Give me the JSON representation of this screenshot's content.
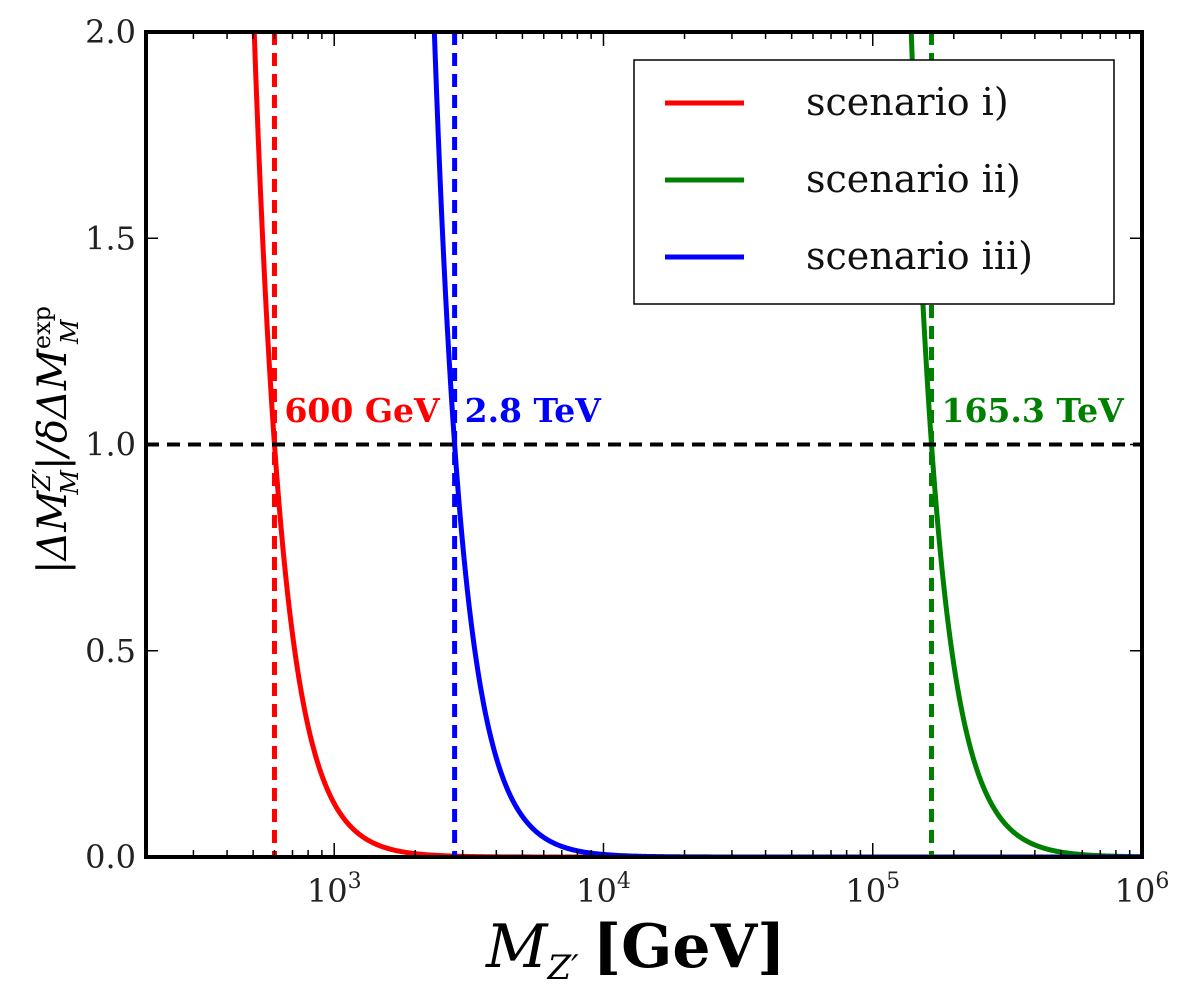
{
  "chart_data": {
    "type": "line",
    "title": "",
    "x_scale": "log",
    "xlim": [
      200,
      1000000
    ],
    "ylim": [
      0.0,
      2.0
    ],
    "xlabel": {
      "main": "M",
      "sub": "Z′",
      "unit": "[GeV]"
    },
    "ylabel": {
      "parts": [
        "|ΔM",
        "|/δΔM"
      ],
      "sub1": "M",
      "sup1": "Z′",
      "sub2": "M",
      "sup2": "exp"
    },
    "y_ticks": [
      "0.0",
      "0.5",
      "1.0",
      "1.5",
      "2.0"
    ],
    "x_ticks": [
      {
        "base": "10",
        "exp": "3",
        "value": 1000
      },
      {
        "base": "10",
        "exp": "4",
        "value": 10000
      },
      {
        "base": "10",
        "exp": "5",
        "value": 100000
      },
      {
        "base": "10",
        "exp": "6",
        "value": 1000000
      }
    ],
    "series": [
      {
        "name": "scenario i)",
        "color": "#ff0000",
        "bound_gev": 600,
        "x_start": 430,
        "x_end": 1000000
      },
      {
        "name": "scenario ii)",
        "color": "#008000",
        "bound_gev": 165300,
        "x_start": 118000,
        "x_end": 1000000
      },
      {
        "name": "scenario iii)",
        "color": "#0000ff",
        "bound_gev": 2800,
        "x_start": 1990,
        "x_end": 1000000
      }
    ],
    "model": "ratio = (bound / M)^4",
    "reference_line": {
      "y": 1.0,
      "color": "#000000",
      "style": "dashed"
    },
    "annotations": [
      {
        "text": "600 GeV",
        "color": "#ff0000",
        "series": "scenario i)"
      },
      {
        "text": "2.8 TeV",
        "color": "#0000ff",
        "series": "scenario iii)"
      },
      {
        "text": "165.3 TeV",
        "color": "#008000",
        "series": "scenario ii)"
      }
    ],
    "legend": {
      "location": "top-right",
      "entries": [
        "scenario i)",
        "scenario ii)",
        "scenario iii)"
      ]
    }
  }
}
